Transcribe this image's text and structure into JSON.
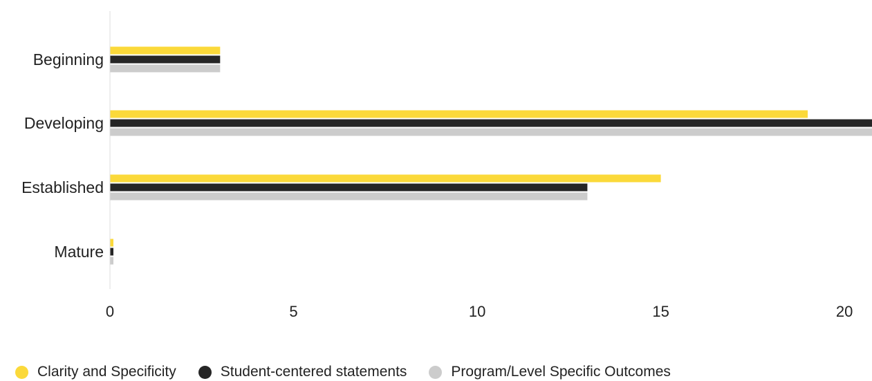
{
  "chart_data": {
    "type": "bar",
    "orientation": "horizontal",
    "categories": [
      "Beginning",
      "Developing",
      "Established",
      "Mature"
    ],
    "series": [
      {
        "name": "Clarity and Specificity",
        "color": "#fbd93a",
        "values": [
          3,
          19,
          15,
          0
        ]
      },
      {
        "name": "Student-centered statements",
        "color": "#262626",
        "values": [
          3,
          21,
          13,
          0
        ]
      },
      {
        "name": "Program/Level Specific Outcomes",
        "color": "#cccccc",
        "values": [
          3,
          21,
          13,
          0
        ]
      }
    ],
    "x_ticks": [
      "0",
      "5",
      "10",
      "15",
      "20"
    ],
    "xlim": [
      0,
      20.75
    ],
    "grid": false,
    "legend_position": "bottom-left"
  }
}
